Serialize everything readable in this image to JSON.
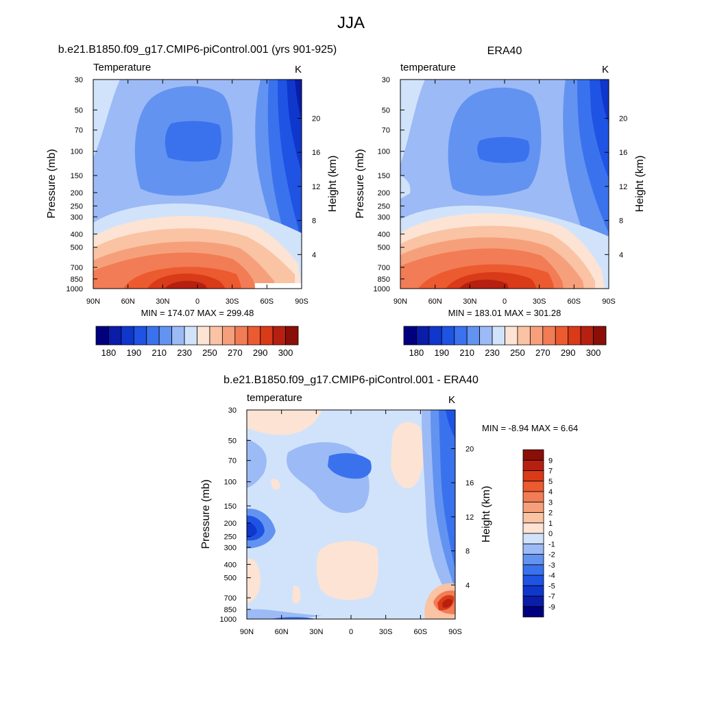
{
  "figure": {
    "title": "JJA",
    "colors": {
      "temp_scale": [
        "#00007f",
        "#0a1ca8",
        "#0f37cc",
        "#1f53e3",
        "#3a72ee",
        "#6393f1",
        "#9cbaf5",
        "#d1e3fb",
        "#fce3d3",
        "#f9c3a4",
        "#f6a07b",
        "#f27c55",
        "#ec5a30",
        "#d93a18",
        "#b62010",
        "#8a0f08"
      ],
      "diff_scale": [
        "#00007f",
        "#0a1ca8",
        "#0f37cc",
        "#1f53e3",
        "#3a72ee",
        "#6393f1",
        "#9cbaf5",
        "#d1e3fb",
        "#fce3d3",
        "#f9c3a4",
        "#f6a07b",
        "#f27c55",
        "#ec5a30",
        "#d93a18",
        "#b62010",
        "#8a0f08"
      ]
    }
  },
  "chart_data": [
    {
      "id": "model",
      "type": "heatmap",
      "title": "b.e21.B1850.f09_g17.CMIP6-piControl.001 (yrs 901-925)",
      "field": "Temperature",
      "units": "K",
      "xlabel": "",
      "ylabel": "Pressure (mb)",
      "ylabel_right": "Height (km)",
      "x_ticks": [
        "90N",
        "60N",
        "30N",
        "0",
        "30S",
        "60S",
        "90S"
      ],
      "y_ticks": [
        "30",
        "50",
        "70",
        "100",
        "150",
        "200",
        "250",
        "300",
        "400",
        "500",
        "700",
        "850",
        "1000"
      ],
      "height_ticks": [
        "20",
        "16",
        "12",
        "8",
        "4"
      ],
      "stats": "MIN = 174.07  MAX = 299.48",
      "min": 174.07,
      "max": 299.48,
      "colorbar_labels": [
        "180",
        "190",
        "210",
        "230",
        "250",
        "270",
        "290",
        "300"
      ]
    },
    {
      "id": "obs",
      "type": "heatmap",
      "title": "ERA40",
      "field": "temperature",
      "units": "K",
      "xlabel": "",
      "ylabel": "Pressure (mb)",
      "ylabel_right": "Height (km)",
      "x_ticks": [
        "90N",
        "60N",
        "30N",
        "0",
        "30S",
        "60S",
        "90S"
      ],
      "y_ticks": [
        "30",
        "50",
        "70",
        "100",
        "150",
        "200",
        "250",
        "300",
        "400",
        "500",
        "700",
        "850",
        "1000"
      ],
      "height_ticks": [
        "20",
        "16",
        "12",
        "8",
        "4"
      ],
      "stats": "MIN = 183.01  MAX = 301.28",
      "min": 183.01,
      "max": 301.28,
      "colorbar_labels": [
        "180",
        "190",
        "210",
        "230",
        "250",
        "270",
        "290",
        "300"
      ]
    },
    {
      "id": "diff",
      "type": "heatmap",
      "title": "b.e21.B1850.f09_g17.CMIP6-piControl.001 - ERA40",
      "field": "temperature",
      "units": "K",
      "xlabel": "",
      "ylabel": "Pressure (mb)",
      "ylabel_right": "Height (km)",
      "x_ticks": [
        "90N",
        "60N",
        "30N",
        "0",
        "30S",
        "60S",
        "90S"
      ],
      "y_ticks": [
        "30",
        "50",
        "70",
        "100",
        "150",
        "200",
        "250",
        "300",
        "400",
        "500",
        "700",
        "850",
        "1000"
      ],
      "height_ticks": [
        "20",
        "16",
        "12",
        "8",
        "4"
      ],
      "stats": "MIN =  -8.94  MAX =   6.64",
      "min": -8.94,
      "max": 6.64,
      "colorbar_labels": [
        "9",
        "7",
        "5",
        "4",
        "3",
        "2",
        "1",
        "0",
        "-1",
        "-2",
        "-3",
        "-4",
        "-5",
        "-7",
        "-9"
      ]
    }
  ]
}
